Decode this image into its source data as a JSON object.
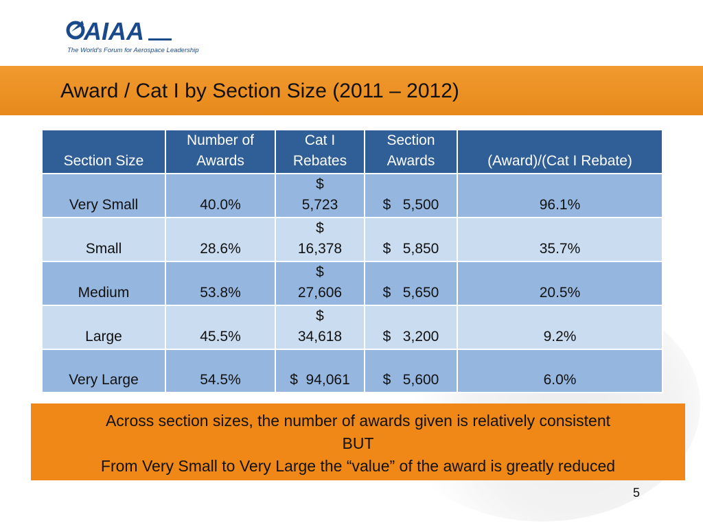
{
  "logo": {
    "text": "AIAA",
    "tagline": "The World's Forum for Aerospace Leadership"
  },
  "slide": {
    "title": "Award / Cat I by Section Size (2011 – 2012)",
    "page_number": "5"
  },
  "table": {
    "headers": [
      {
        "line1": "",
        "line2": "Section Size"
      },
      {
        "line1": "Number of",
        "line2": "Awards"
      },
      {
        "line1": "Cat I",
        "line2": "Rebates"
      },
      {
        "line1": "Section",
        "line2": "Awards"
      },
      {
        "line1": "",
        "line2": "(Award)/(Cat I Rebate)"
      }
    ],
    "rows": [
      {
        "size": "Very Small",
        "awards_pct": "40.0%",
        "rebate_symbol": "$",
        "rebate_value": "5,723",
        "section_awards": "$   5,500",
        "ratio": "96.1%"
      },
      {
        "size": "Small",
        "awards_pct": "28.6%",
        "rebate_symbol": "$",
        "rebate_value": "16,378",
        "section_awards": "$   5,850",
        "ratio": "35.7%"
      },
      {
        "size": "Medium",
        "awards_pct": "53.8%",
        "rebate_symbol": "$",
        "rebate_value": "27,606",
        "section_awards": "$   5,650",
        "ratio": "20.5%"
      },
      {
        "size": "Large",
        "awards_pct": "45.5%",
        "rebate_symbol": "$",
        "rebate_value": "34,618",
        "section_awards": "$   3,200",
        "ratio": "9.2%"
      },
      {
        "size": "Very Large",
        "awards_pct": "54.5%",
        "rebate_symbol": "",
        "rebate_value": "$  94,061",
        "section_awards": "$   5,600",
        "ratio": "6.0%"
      }
    ]
  },
  "summary": {
    "line1": "Across section sizes, the number of awards given is relatively consistent",
    "line2": "BUT",
    "line3": "From Very Small to Very Large the “value” of the award is greatly reduced"
  },
  "colors": {
    "title_band": "#e98c1e",
    "header_bg": "#2f5f96",
    "row_dark": "#95b7df",
    "row_light": "#c9dcf0",
    "summary_bg": "#ef8816",
    "logo_blue": "#1b4a8a"
  }
}
